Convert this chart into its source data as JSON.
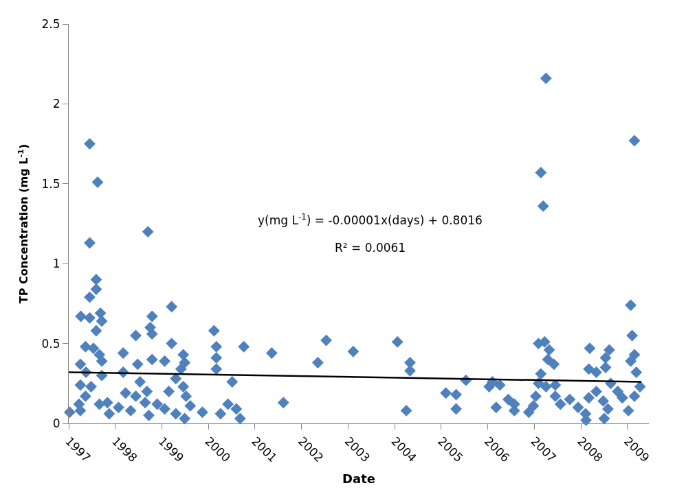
{
  "chart_data": {
    "type": "scatter",
    "xlabel": "Date",
    "ylabel": "TP Concentration (mg L$^{-1}$)",
    "xlim": [
      1997,
      2009.46
    ],
    "xticks": [
      1997,
      1998,
      1999,
      2000,
      2001,
      2002,
      2003,
      2004,
      2005,
      2006,
      2007,
      2008,
      2009
    ],
    "ylim": [
      0,
      2.5
    ],
    "yticks": [
      0,
      0.5,
      1,
      1.5,
      2,
      2.5
    ],
    "marker": "diamond",
    "annotations": [
      "y(mg L$^{-1}$) = -0.00001x(days) + 0.8016",
      "R² = 0.0061"
    ],
    "series": [
      {
        "color": "#4f81bd",
        "x": [
          1997.45,
          1997.62,
          1998.7,
          1997.45,
          1997.59,
          1997.59,
          1997.45,
          1999.21,
          1997.26,
          1997.45,
          1997.68,
          1997.71,
          1997.59,
          1998.79,
          1998.75,
          1998.79,
          1998.44,
          2000.12,
          2000.17,
          2000.17,
          2000.17,
          2000.76,
          2001.36,
          1999.21,
          1998.17,
          1997.36,
          1997.53,
          1997.66,
          1997.71,
          1997.25,
          1997.37,
          1997.71,
          1998.17,
          1998.48,
          1998.79,
          1999.06,
          1999.46,
          1999.49,
          1999.41,
          1997.25,
          1997.48,
          1997.36,
          1997.22,
          1997.02,
          1997.25,
          1997.66,
          1997.83,
          1997.87,
          1998.07,
          1998.22,
          1998.33,
          1998.44,
          1998.53,
          1998.68,
          1998.64,
          1998.72,
          1998.9,
          1999.06,
          1999.15,
          1999.3,
          1999.46,
          1999.52,
          1999.3,
          1999.49,
          1999.61,
          1999.87,
          2000.26,
          2000.42,
          2000.6,
          2000.68,
          2000.51,
          2002.53,
          2002.35,
          2003.11,
          2004.06,
          2004.33,
          2004.33,
          2001.61,
          2004.25,
          2005.1,
          2005.32,
          2005.32,
          2005.53,
          2006.03,
          2007.25,
          2009.15,
          2007.14,
          2007.19,
          2009.07,
          2009.1,
          2009.15,
          2009.07,
          2009.19,
          2009.27,
          2009.15,
          2009.02,
          2008.19,
          2008.61,
          2008.53,
          2008.53,
          2007.09,
          2007.22,
          2007.32,
          2007.29,
          2007.42,
          2007.14,
          2007.09,
          2007.25,
          2007.45,
          2007.03,
          2006.98,
          2006.88,
          2007.45,
          2007.56,
          2007.76,
          2007.94,
          2008.1,
          2008.11,
          2008.17,
          2008.17,
          2008.33,
          2008.33,
          2008.48,
          2008.5,
          2008.58,
          2008.64,
          2008.79,
          2008.89,
          2006.26,
          2006.1,
          2006.18,
          2006.44,
          2006.57,
          2006.57
        ],
        "values": [
          1.75,
          1.51,
          1.2,
          1.13,
          0.9,
          0.84,
          0.79,
          0.73,
          0.67,
          0.66,
          0.69,
          0.64,
          0.58,
          0.67,
          0.6,
          0.56,
          0.55,
          0.58,
          0.48,
          0.41,
          0.34,
          0.48,
          0.44,
          0.5,
          0.44,
          0.48,
          0.47,
          0.43,
          0.39,
          0.37,
          0.32,
          0.3,
          0.32,
          0.37,
          0.4,
          0.39,
          0.43,
          0.38,
          0.34,
          0.24,
          0.23,
          0.17,
          0.12,
          0.07,
          0.08,
          0.12,
          0.13,
          0.06,
          0.1,
          0.19,
          0.08,
          0.17,
          0.26,
          0.2,
          0.13,
          0.05,
          0.12,
          0.09,
          0.2,
          0.28,
          0.23,
          0.17,
          0.06,
          0.03,
          0.11,
          0.07,
          0.06,
          0.12,
          0.09,
          0.03,
          0.26,
          0.52,
          0.38,
          0.45,
          0.51,
          0.38,
          0.33,
          0.13,
          0.08,
          0.19,
          0.18,
          0.09,
          0.27,
          0.23,
          2.16,
          1.77,
          1.57,
          1.36,
          0.74,
          0.55,
          0.43,
          0.39,
          0.32,
          0.23,
          0.17,
          0.08,
          0.47,
          0.46,
          0.41,
          0.35,
          0.5,
          0.51,
          0.46,
          0.4,
          0.37,
          0.31,
          0.25,
          0.23,
          0.24,
          0.17,
          0.11,
          0.07,
          0.17,
          0.12,
          0.15,
          0.1,
          0.06,
          0.02,
          0.16,
          0.34,
          0.32,
          0.2,
          0.14,
          0.03,
          0.09,
          0.25,
          0.2,
          0.16,
          0.24,
          0.26,
          0.1,
          0.15,
          0.08,
          0.12
        ]
      },
      {
        "type": "line",
        "color": "#000000",
        "marker": "none",
        "x": [
          1997,
          2009.3
        ],
        "values": [
          0.32,
          0.26
        ]
      }
    ]
  }
}
